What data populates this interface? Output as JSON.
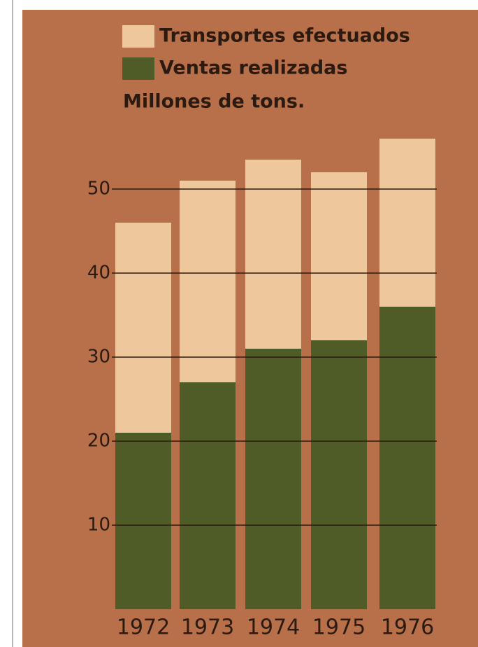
{
  "chart_data": {
    "type": "bar",
    "y_label": "Millones de tons.",
    "categories": [
      "1972",
      "1973",
      "1974",
      "1975",
      "1976"
    ],
    "series": [
      {
        "name": "Transportes efectuados",
        "color": "#efc79d",
        "values": [
          46,
          51,
          53.5,
          52,
          56
        ]
      },
      {
        "name": "Ventas realizadas",
        "color": "#4f5c27",
        "values": [
          21,
          27,
          31,
          32,
          36
        ]
      }
    ],
    "ylim": [
      0,
      57
    ],
    "yticks": [
      10,
      20,
      30,
      40,
      50
    ],
    "grid": true
  }
}
